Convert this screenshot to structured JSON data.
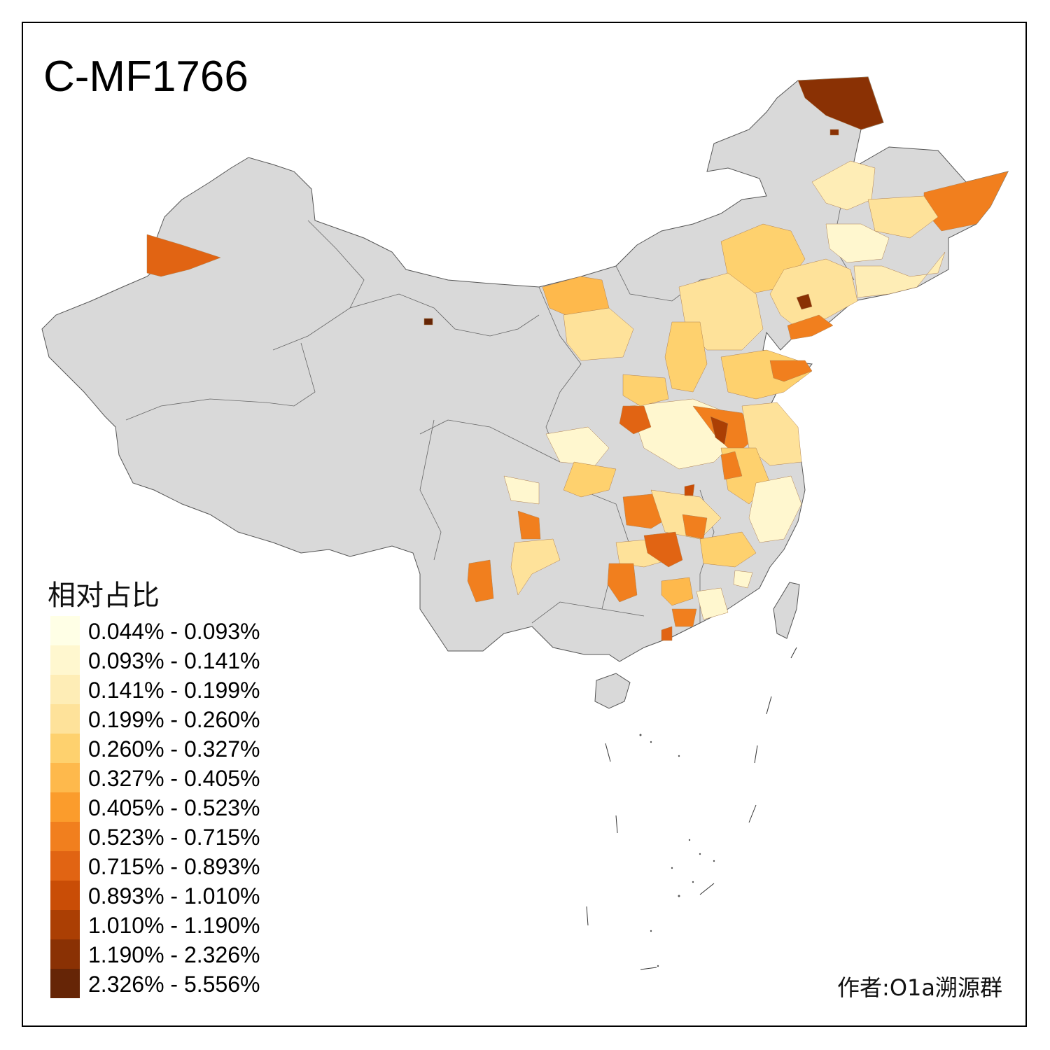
{
  "title": "C-MF1766",
  "legend": {
    "title": "相对占比",
    "items": [
      {
        "label": "0.044% - 0.093%",
        "color": "#FFFFE6"
      },
      {
        "label": "0.093% - 0.141%",
        "color": "#FFF7CF"
      },
      {
        "label": "0.141% - 0.199%",
        "color": "#FEEDB6"
      },
      {
        "label": "0.199% - 0.260%",
        "color": "#FEE29A"
      },
      {
        "label": "0.260% - 0.327%",
        "color": "#FED16E"
      },
      {
        "label": "0.327% - 0.405%",
        "color": "#FEB94C"
      },
      {
        "label": "0.405% - 0.523%",
        "color": "#FB9C2C"
      },
      {
        "label": "0.523% - 0.715%",
        "color": "#F17F1E"
      },
      {
        "label": "0.715% - 0.893%",
        "color": "#E16413"
      },
      {
        "label": "0.893% - 1.010%",
        "color": "#C94D06"
      },
      {
        "label": "1.010% - 1.190%",
        "color": "#AB3F04"
      },
      {
        "label": "1.190% - 2.326%",
        "color": "#8A3104"
      },
      {
        "label": "2.326% - 5.556%",
        "color": "#662506"
      }
    ]
  },
  "credit": "作者:O1a溯源群",
  "map_colors": {
    "base": "#D9D9D9",
    "border": "#555555"
  }
}
